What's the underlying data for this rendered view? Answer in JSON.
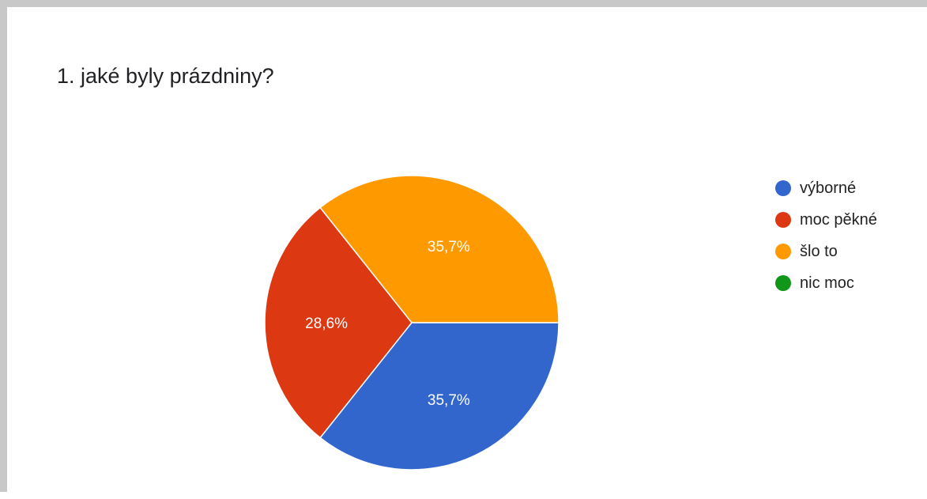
{
  "question": {
    "title": "1. jaké byly prázdniny?"
  },
  "chart_data": {
    "type": "pie",
    "categories": [
      "výborné",
      "moc pěkné",
      "šlo to",
      "nic moc"
    ],
    "values": [
      35.7,
      28.6,
      35.7,
      0
    ],
    "data_labels": [
      "35,7%",
      "28,6%",
      "35,7%",
      ""
    ],
    "colors": [
      "#3366cc",
      "#dc3912",
      "#ff9900",
      "#109618"
    ],
    "legend_position": "right"
  }
}
